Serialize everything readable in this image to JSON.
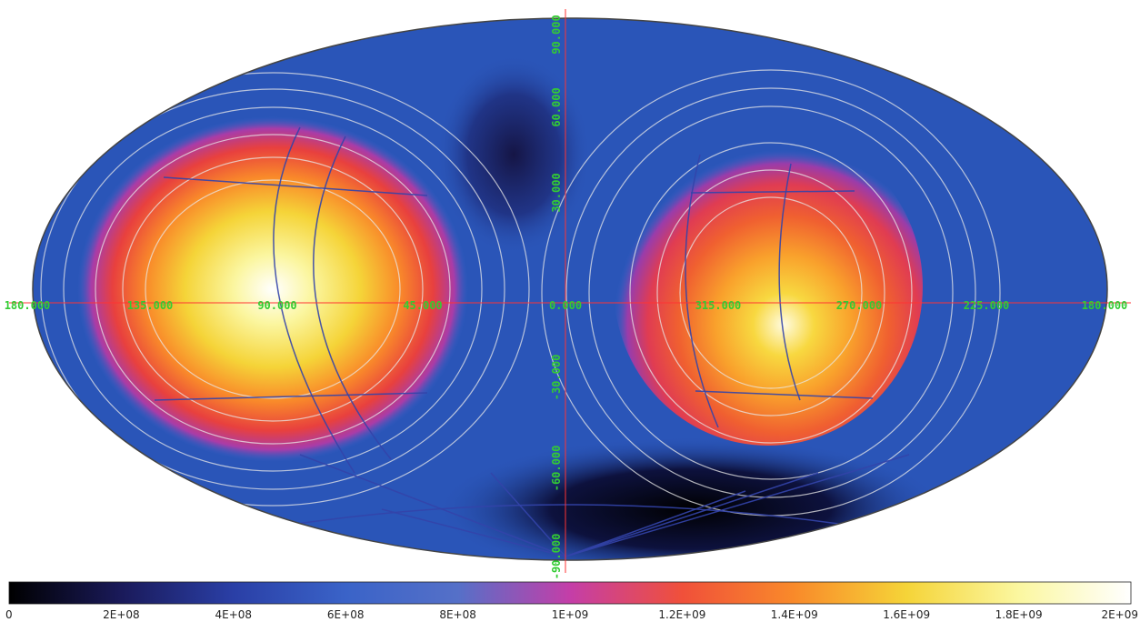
{
  "map": {
    "projection": "mollweide",
    "background_color": "#2a55b8",
    "graticule_color": "#ff3333",
    "grid_color": "#3344aa",
    "contour_color": "#e8e8e8",
    "lon_labels": [
      "180.000",
      "135.000",
      "90.000",
      "45.000",
      "0.000",
      "315.000",
      "270.000",
      "225.000",
      "180.000"
    ],
    "lat_labels": [
      "90.000",
      "60.000",
      "30.000",
      "-30.000",
      "-60.000",
      "-90.000"
    ]
  },
  "colorbar": {
    "tick_labels": [
      "0",
      "2E+08",
      "4E+08",
      "6E+08",
      "8E+08",
      "1E+09",
      "1.2E+09",
      "1.4E+09",
      "1.6E+09",
      "1.8E+09",
      "2E+09"
    ],
    "min": 0,
    "max": 2000000000,
    "colors": [
      "#000000",
      "#1a1a5a",
      "#2a3fa6",
      "#3a63c8",
      "#5570c8",
      "#c43ea8",
      "#f0503a",
      "#f98a2a",
      "#f5d438",
      "#fbf7a0",
      "#ffffff"
    ]
  }
}
